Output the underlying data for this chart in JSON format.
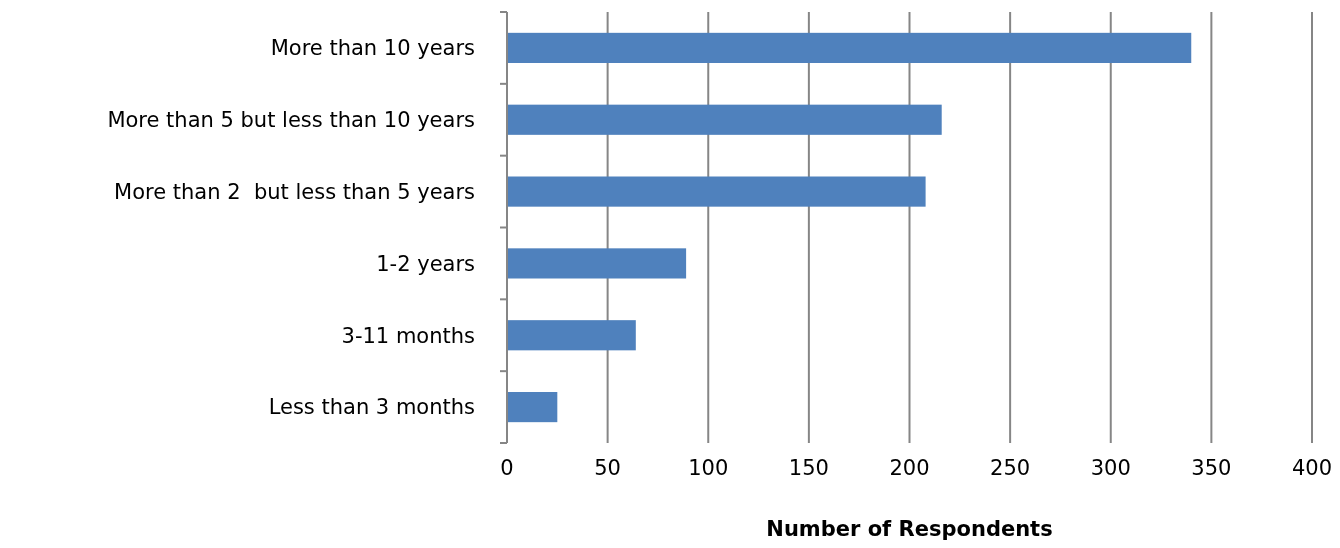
{
  "chart_data": {
    "type": "bar",
    "orientation": "horizontal",
    "xlabel": "Number of Respondents",
    "categories": [
      "More than 10 years",
      "More than 5 but less than 10 years",
      "More than 2  but less than 5 years",
      "1-2 years",
      "3-11 months",
      "Less than 3 months"
    ],
    "values": [
      340,
      216,
      208,
      89,
      64,
      25
    ],
    "color": "#4f81bd",
    "xlim": [
      0,
      400
    ],
    "xticks": [
      0,
      50,
      100,
      150,
      200,
      250,
      300,
      350,
      400
    ],
    "grid": "x"
  }
}
